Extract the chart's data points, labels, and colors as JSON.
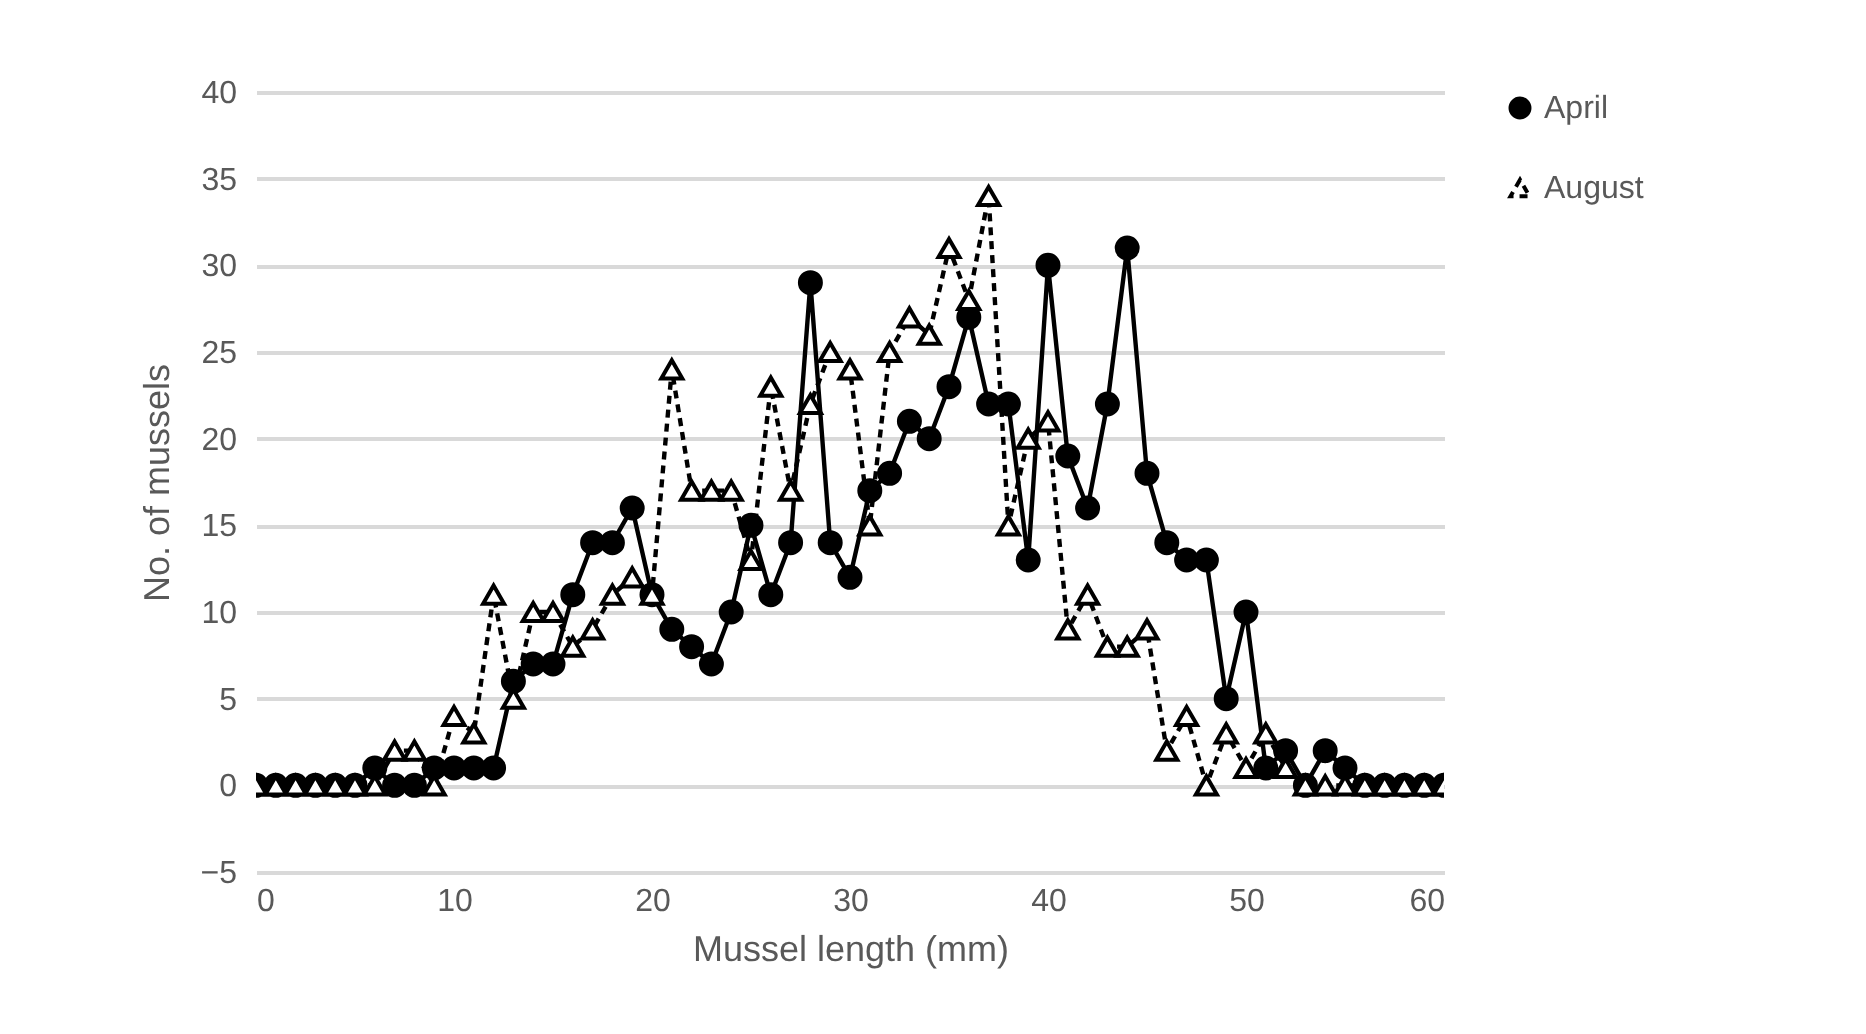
{
  "chart_data": {
    "type": "line",
    "xlabel": "Mussel length (mm)",
    "ylabel": "No. of mussels",
    "x": [
      0,
      1,
      2,
      3,
      4,
      5,
      6,
      7,
      8,
      9,
      10,
      11,
      12,
      13,
      14,
      15,
      16,
      17,
      18,
      19,
      20,
      21,
      22,
      23,
      24,
      25,
      26,
      27,
      28,
      29,
      30,
      31,
      32,
      33,
      34,
      35,
      36,
      37,
      38,
      39,
      40,
      41,
      42,
      43,
      44,
      45,
      46,
      47,
      48,
      49,
      50,
      51,
      52,
      53,
      54,
      55,
      56,
      57,
      58,
      59,
      60
    ],
    "series": [
      {
        "name": "April",
        "color": "#000000",
        "marker": "circle",
        "line_style": "solid",
        "values": [
          0,
          0,
          0,
          0,
          0,
          0,
          1,
          0,
          0,
          1,
          1,
          1,
          1,
          6,
          7,
          7,
          11,
          14,
          14,
          16,
          11,
          9,
          8,
          7,
          10,
          15,
          11,
          14,
          29,
          14,
          12,
          17,
          18,
          21,
          20,
          23,
          27,
          22,
          22,
          13,
          30,
          19,
          16,
          22,
          31,
          18,
          14,
          13,
          13,
          5,
          10,
          1,
          2,
          0,
          2,
          1,
          0,
          0,
          0,
          0,
          0
        ]
      },
      {
        "name": "August",
        "color": "#000000",
        "marker": "triangle",
        "line_style": "dashed",
        "values": [
          0,
          0,
          0,
          0,
          0,
          0,
          0,
          2,
          2,
          0,
          4,
          3,
          11,
          5,
          10,
          10,
          8,
          9,
          11,
          12,
          11,
          24,
          17,
          17,
          17,
          13,
          23,
          17,
          22,
          25,
          24,
          15,
          25,
          27,
          26,
          31,
          28,
          34,
          15,
          20,
          21,
          9,
          11,
          8,
          8,
          9,
          2,
          4,
          0,
          3,
          1,
          3,
          1,
          0,
          0,
          0,
          0,
          0,
          0,
          0,
          0
        ]
      }
    ],
    "xlim": [
      0,
      60
    ],
    "xticks": [
      0,
      10,
      20,
      30,
      40,
      50,
      60
    ],
    "ylim": [
      -5,
      40
    ],
    "yticks": [
      -5,
      0,
      5,
      10,
      15,
      20,
      25,
      30,
      35,
      40
    ],
    "grid": "y",
    "legend": "right"
  }
}
